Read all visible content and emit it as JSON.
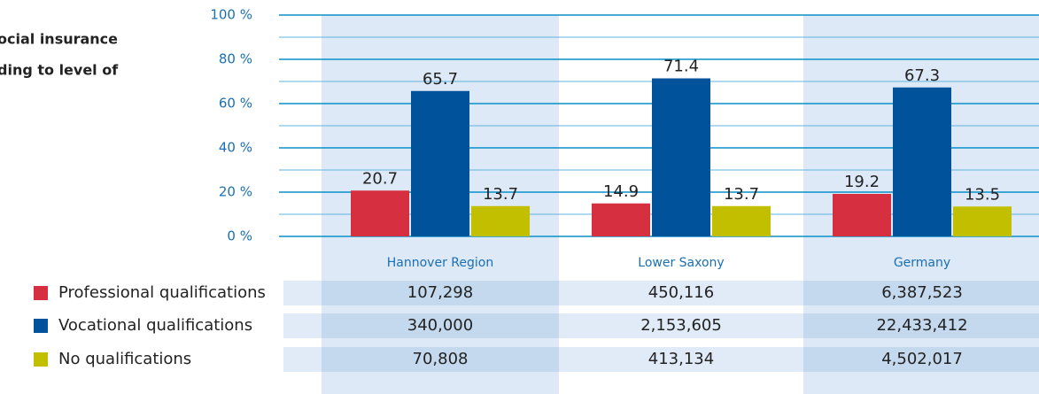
{
  "chart_data": {
    "type": "bar",
    "title_lines": [
      "ocial insurance",
      "ding to level of"
    ],
    "categories": [
      "Hannover Region",
      "Lower Saxony",
      "Germany"
    ],
    "ylim": [
      0,
      100
    ],
    "yticks": [
      {
        "value": 0,
        "label": "0 %"
      },
      {
        "value": 20,
        "label": "20 %"
      },
      {
        "value": 40,
        "label": "40 %"
      },
      {
        "value": 60,
        "label": "60 %"
      },
      {
        "value": 80,
        "label": "80 %"
      },
      {
        "value": 100,
        "label": "100 %"
      }
    ],
    "minor_yticks": [
      10,
      30,
      50,
      70,
      90
    ],
    "grid": true,
    "series": [
      {
        "name": "Professional qualifications",
        "color": "#d62f3f",
        "values": [
          20.7,
          14.9,
          19.2
        ],
        "counts": [
          "107,298",
          "450,116",
          "6,387,523"
        ]
      },
      {
        "name": "Vocational qualifications",
        "color": "#00539b",
        "values": [
          65.7,
          71.4,
          67.3
        ],
        "counts": [
          "340,000",
          "2,153,605",
          "22,433,412"
        ]
      },
      {
        "name": "No qualifications",
        "color": "#c1bf00",
        "values": [
          13.7,
          13.7,
          13.5
        ],
        "counts": [
          "70,808",
          "413,134",
          "4,502,017"
        ]
      }
    ]
  }
}
